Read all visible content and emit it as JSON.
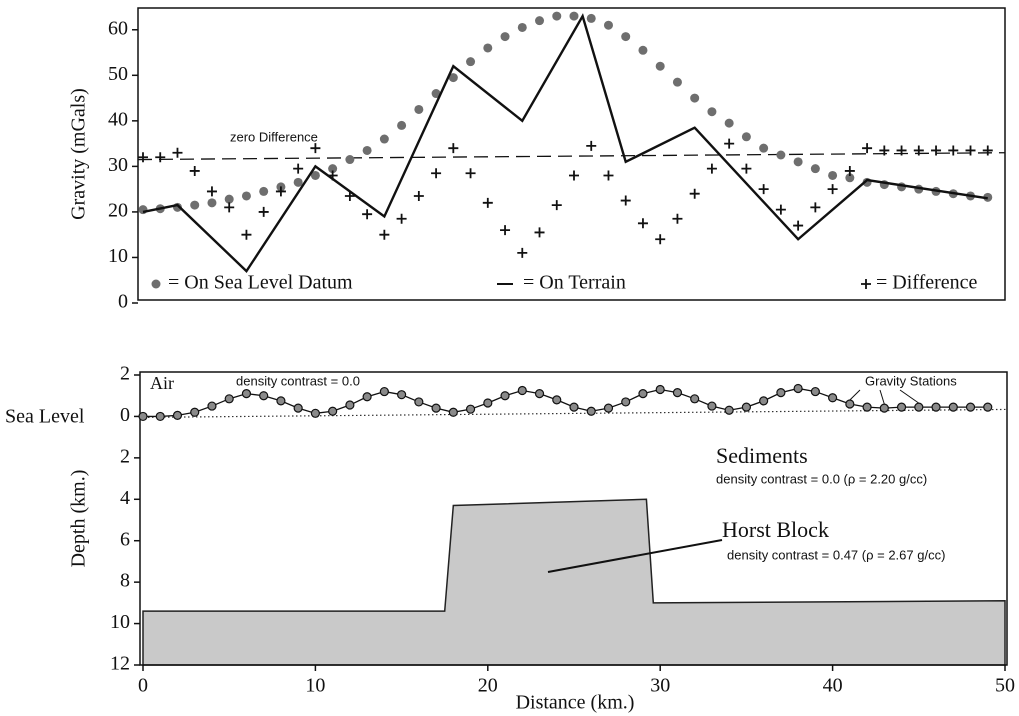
{
  "chart_data": [
    {
      "type": "line",
      "ylabel": "Gravity (mGals)",
      "xlim": [
        0,
        50
      ],
      "ylim": [
        0,
        65
      ],
      "yticks": [
        0,
        10,
        20,
        30,
        40,
        50,
        60
      ],
      "series": [
        {
          "name": "= On Sea Level Datum",
          "marker": "dot",
          "color": "#6e6e6e",
          "x": [
            0,
            1,
            2,
            3,
            4,
            5,
            6,
            7,
            8,
            9,
            10,
            11,
            12,
            13,
            14,
            15,
            16,
            17,
            18,
            19,
            20,
            21,
            22,
            23,
            24,
            25,
            26,
            27,
            28,
            29,
            30,
            31,
            32,
            33,
            34,
            35,
            36,
            37,
            38,
            39,
            40,
            41,
            42,
            43,
            44,
            45,
            46,
            47,
            48,
            49
          ],
          "values": [
            20.5,
            20.7,
            21,
            21.5,
            22,
            22.8,
            23.5,
            24.5,
            25.5,
            26.5,
            28,
            29.5,
            31.5,
            33.5,
            36,
            39,
            42.5,
            46,
            49.5,
            53,
            56,
            58.5,
            60.5,
            62,
            63,
            63,
            62.5,
            61,
            58.5,
            55.5,
            52,
            48.5,
            45,
            42,
            39.5,
            36.5,
            34,
            32.5,
            31,
            29.5,
            28,
            27.5,
            26.5,
            26,
            25.5,
            25,
            24.5,
            24,
            23.5,
            23.2
          ]
        },
        {
          "name": "= On Terrain",
          "marker": "line",
          "color": "#111111",
          "x": [
            0,
            2,
            6,
            10,
            14,
            18,
            22,
            25.5,
            28,
            32,
            38,
            42,
            49
          ],
          "values": [
            20,
            21.5,
            7,
            30,
            19,
            52,
            40,
            63,
            31,
            38.5,
            14,
            27,
            23
          ]
        },
        {
          "name": "= Difference",
          "marker": "plus",
          "color": "#111111",
          "x": [
            0,
            1,
            2,
            3,
            4,
            5,
            6,
            7,
            8,
            9,
            10,
            11,
            12,
            13,
            14,
            15,
            16,
            17,
            18,
            19,
            20,
            21,
            22,
            23,
            24,
            25,
            26,
            27,
            28,
            29,
            30,
            31,
            32,
            33,
            34,
            35,
            36,
            37,
            38,
            39,
            40,
            41,
            42,
            43,
            44,
            45,
            46,
            47,
            48,
            49
          ],
          "values": [
            32,
            32,
            33,
            29,
            24.5,
            21,
            15,
            20,
            24.5,
            29.5,
            34,
            28,
            23.5,
            19.5,
            15,
            18.5,
            23.5,
            28.5,
            34,
            28.5,
            22,
            16,
            11,
            15.5,
            21.5,
            28,
            34.5,
            28,
            22.5,
            17.5,
            14,
            18.5,
            24,
            29.5,
            35,
            29.5,
            25,
            20.5,
            17,
            21,
            25,
            29,
            34,
            33.5,
            33.5,
            33.5,
            33.5,
            33.5,
            33.5,
            33.5
          ]
        }
      ],
      "reference_line": {
        "label": "zero Difference",
        "x": [
          0,
          50
        ],
        "values": [
          31.5,
          33
        ]
      }
    },
    {
      "type": "line",
      "xlabel": "Distance (km.)",
      "ylabel": "Depth (km.)",
      "xlim": [
        0,
        50
      ],
      "ylim": [
        -2,
        12
      ],
      "y_inverted": true,
      "xticks": [
        0,
        10,
        20,
        30,
        40,
        50
      ],
      "yticks": [
        {
          "value": -2,
          "label": "2"
        },
        0,
        2,
        4,
        6,
        8,
        10,
        12
      ],
      "series": [
        {
          "name": "Gravity Stations",
          "marker": "circle",
          "color": "#111111",
          "x": [
            0,
            1,
            2,
            3,
            4,
            5,
            6,
            7,
            8,
            9,
            10,
            11,
            12,
            13,
            14,
            15,
            16,
            17,
            18,
            19,
            20,
            21,
            22,
            23,
            24,
            25,
            26,
            27,
            28,
            29,
            30,
            31,
            32,
            33,
            34,
            35,
            36,
            37,
            38,
            39,
            40,
            41,
            42,
            43,
            44,
            45,
            46,
            47,
            48,
            49
          ],
          "values": [
            0,
            0,
            -0.05,
            -0.2,
            -0.5,
            -0.85,
            -1.1,
            -1,
            -0.75,
            -0.4,
            -0.15,
            -0.25,
            -0.55,
            -0.95,
            -1.2,
            -1.05,
            -0.7,
            -0.4,
            -0.2,
            -0.35,
            -0.65,
            -1,
            -1.25,
            -1.1,
            -0.8,
            -0.45,
            -0.25,
            -0.4,
            -0.7,
            -1.1,
            -1.3,
            -1.15,
            -0.85,
            -0.5,
            -0.3,
            -0.45,
            -0.75,
            -1.15,
            -1.35,
            -1.2,
            -0.9,
            -0.6,
            -0.45,
            -0.4,
            -0.45,
            -0.45,
            -0.45,
            -0.45,
            -0.45,
            -0.45
          ]
        }
      ],
      "basement": {
        "color": "#c9c9c9",
        "x": [
          0,
          17.5,
          18,
          29.2,
          29.6,
          50
        ],
        "values": [
          9.4,
          9.4,
          4.3,
          4.0,
          9.0,
          8.9
        ]
      },
      "annotations": [
        "Sea Level",
        "Air",
        "density contrast = 0.0",
        "Sediments",
        "density contrast = 0.0 (ρ = 2.20 g/cc)",
        "Horst Block",
        "density contrast = 0.47 (ρ = 2.67 g/cc)"
      ]
    }
  ]
}
